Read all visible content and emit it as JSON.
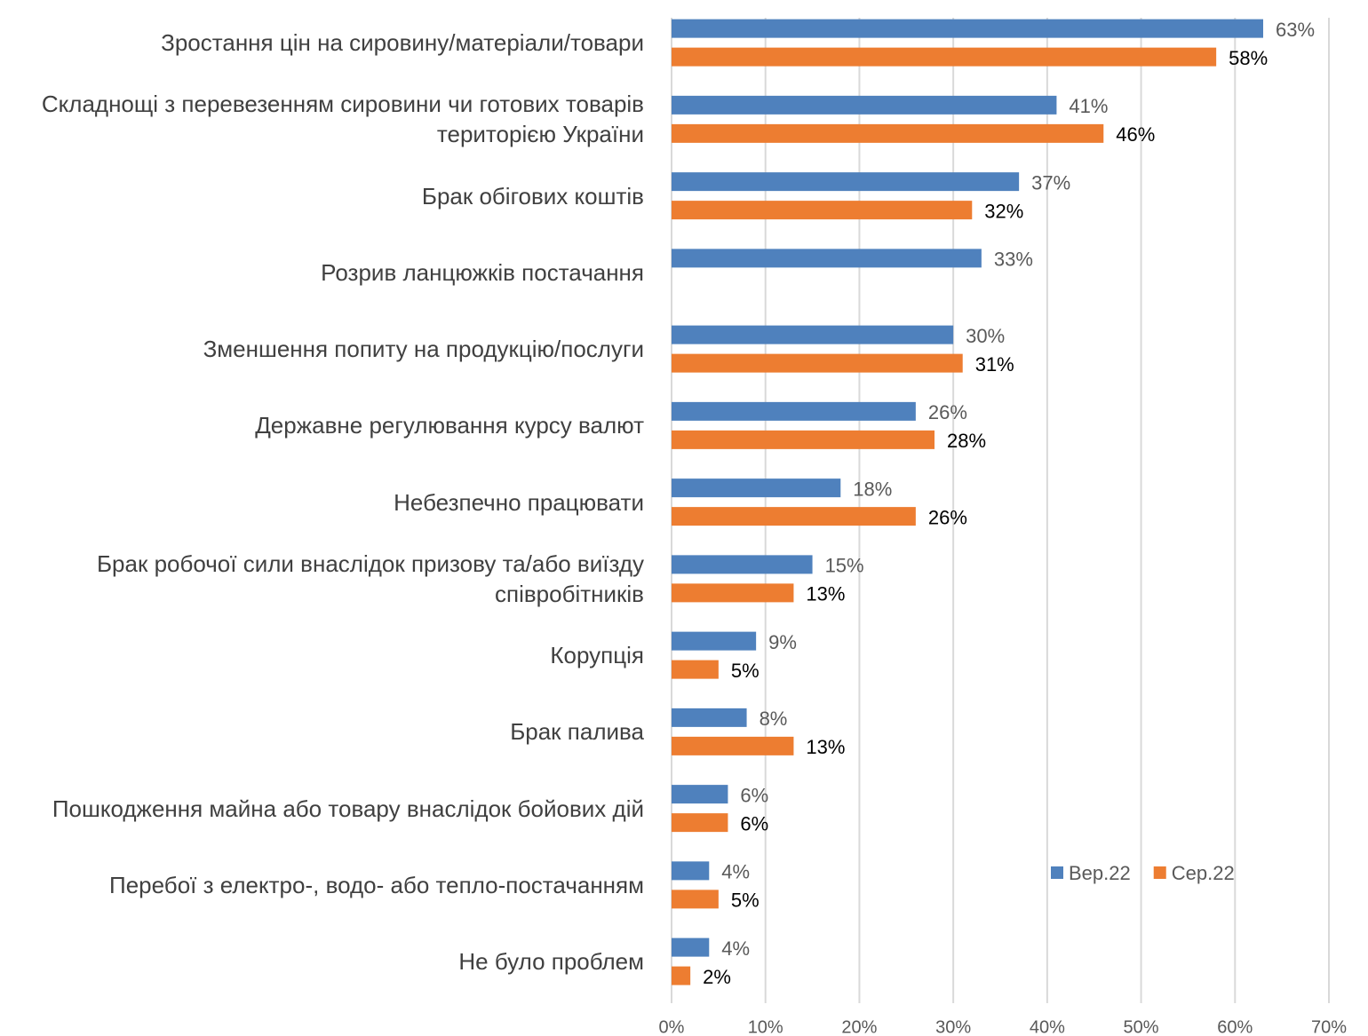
{
  "chart_data": {
    "type": "bar",
    "orientation": "horizontal",
    "categories": [
      "Зростання цін на сировину/матеріали/товари",
      "Складнощі з перевезенням сировини чи готових товарів територією України",
      "Брак обігових коштів",
      "Розрив ланцюжків постачання",
      "Зменшення попиту на продукцію/послуги",
      "Державне регулювання курсу валют",
      "Небезпечно працювати",
      "Брак робочої сили внаслідок призову та/або виїзду співробітників",
      "Корупція",
      "Брак палива",
      "Пошкодження майна або товару внаслідок бойових дій",
      "Перебої з електро-, водо- або тепло-постачанням",
      "Не було проблем"
    ],
    "series": [
      {
        "name": "Вер.22",
        "color": "#4f81bd",
        "values": [
          63,
          41,
          37,
          33,
          30,
          26,
          18,
          15,
          9,
          8,
          6,
          4,
          4
        ],
        "value_labels": [
          "63%",
          "41%",
          "37%",
          "33%",
          "30%",
          "26%",
          "18%",
          "15%",
          "9%",
          "8%",
          "6%",
          "4%",
          "4%"
        ]
      },
      {
        "name": "Сер.22",
        "color": "#ed7d31",
        "values": [
          58,
          46,
          32,
          null,
          31,
          28,
          26,
          13,
          5,
          13,
          6,
          5,
          2
        ],
        "value_labels": [
          "58%",
          "46%",
          "32%",
          null,
          "31%",
          "28%",
          "26%",
          "13%",
          "5%",
          "13%",
          "6%",
          "5%",
          "2%"
        ]
      }
    ],
    "xlim": [
      0,
      70
    ],
    "xticks": [
      {
        "value": 0,
        "label": "0%"
      },
      {
        "value": 10,
        "label": "10%"
      },
      {
        "value": 20,
        "label": "20%"
      },
      {
        "value": 30,
        "label": "30%"
      },
      {
        "value": 40,
        "label": "40%"
      },
      {
        "value": 50,
        "label": "50%"
      },
      {
        "value": 60,
        "label": "60%"
      },
      {
        "value": 70,
        "label": "70%"
      }
    ],
    "grid": true,
    "legend": "lower-right"
  }
}
